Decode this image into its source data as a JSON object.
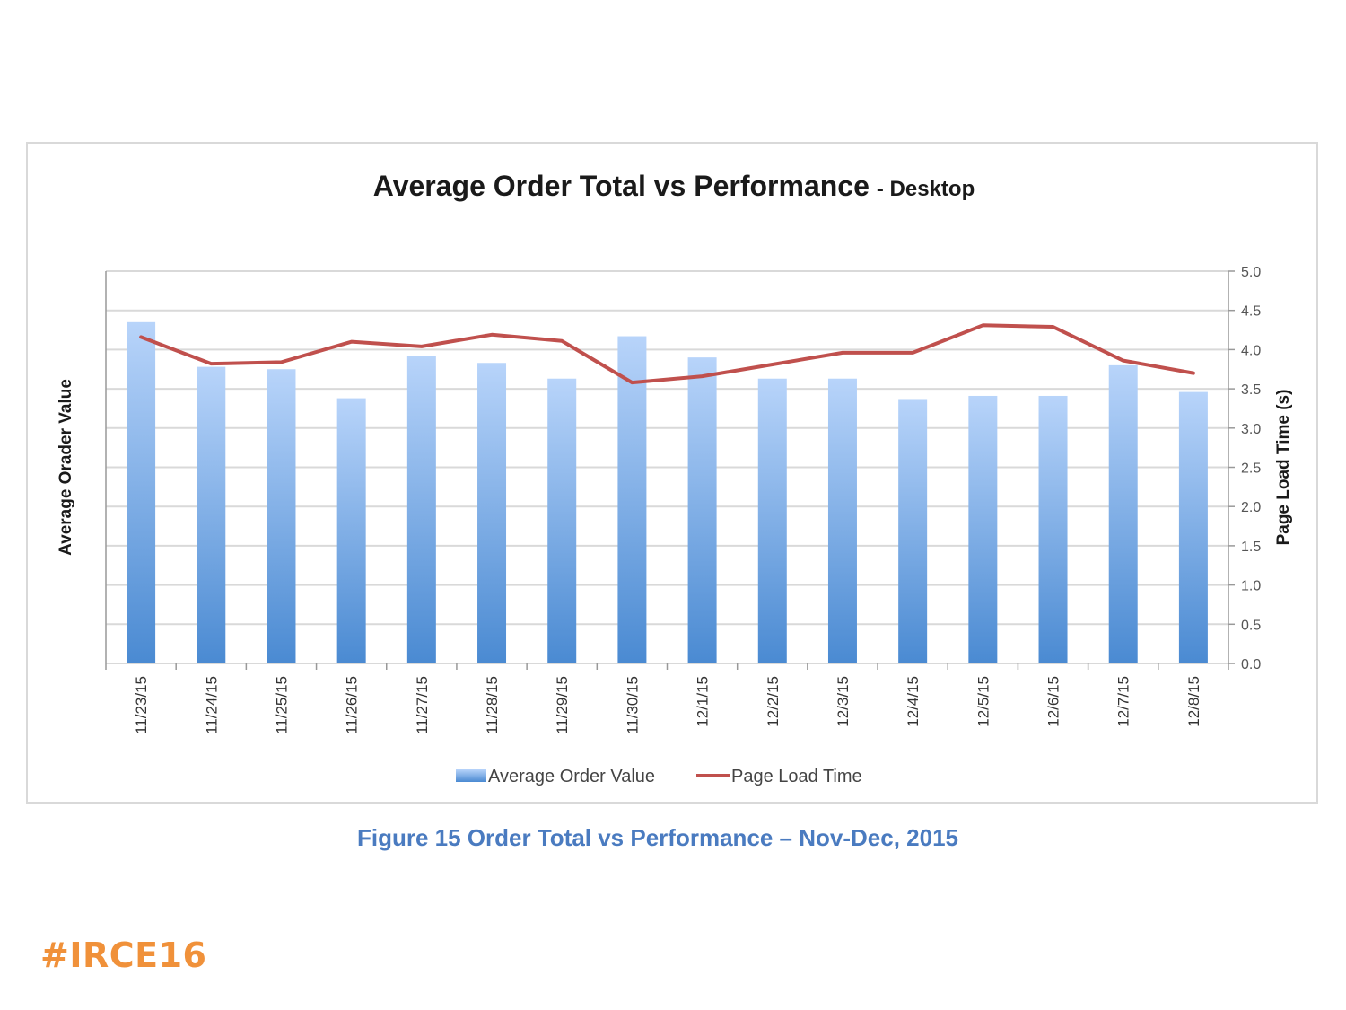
{
  "caption": "Figure 15 Order Total vs Performance – Nov-Dec, 2015",
  "hashtag": "#IRCE16",
  "colors": {
    "bar_top": "#b8d4fa",
    "bar_bottom": "#4a8ad2",
    "line": "#c0504d",
    "grid": "#d9d9d9",
    "caption": "#4a7bc0",
    "hashtag": "#f0913a"
  },
  "chart_data": {
    "type": "bar",
    "title": "Average Order Total vs Performance",
    "subtitle": "- Desktop",
    "ylabel": "Average Orader Value",
    "y2label": "Page Load Time (s)",
    "ylim": [
      0,
      5.0
    ],
    "y_ticks": [
      "0.0",
      "0.5",
      "1.0",
      "1.5",
      "2.0",
      "2.5",
      "3.0",
      "3.5",
      "4.0",
      "4.5",
      "5.0"
    ],
    "categories": [
      "11/23/15",
      "11/24/15",
      "11/25/15",
      "11/26/15",
      "11/27/15",
      "11/28/15",
      "11/29/15",
      "11/30/15",
      "12/1/15",
      "12/2/15",
      "12/3/15",
      "12/4/15",
      "12/5/15",
      "12/6/15",
      "12/7/15",
      "12/8/15"
    ],
    "series": [
      {
        "name": "Average Order Value",
        "type": "bar",
        "values": [
          4.35,
          3.78,
          3.75,
          3.38,
          3.92,
          3.83,
          3.63,
          4.17,
          3.9,
          3.63,
          3.63,
          3.37,
          3.41,
          3.41,
          3.8,
          3.46
        ]
      },
      {
        "name": "Page Load Time",
        "type": "line",
        "values": [
          4.16,
          3.82,
          3.84,
          4.1,
          4.04,
          4.19,
          4.11,
          3.58,
          3.66,
          3.81,
          3.96,
          3.96,
          4.31,
          4.29,
          3.86,
          3.7
        ]
      }
    ],
    "grid": true,
    "legend_position": "bottom"
  }
}
